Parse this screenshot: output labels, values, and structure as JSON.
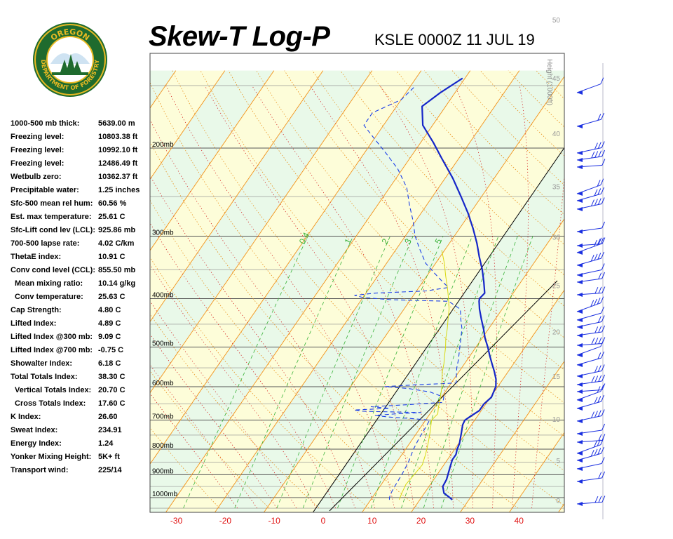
{
  "header": {
    "title": "Skew-T Log-P",
    "station_time": "KSLE 0000Z 11 JUL 19"
  },
  "logo": {
    "top_text": "OREGON",
    "ring_text": "DEPARTMENT OF FORESTRY",
    "ring_color": "#1f6b2e",
    "accent_color": "#e8b923"
  },
  "indices": [
    {
      "label": "1000-500 mb thick:",
      "value": "5639.00 m"
    },
    {
      "label": "Freezing level:",
      "value": "10803.38 ft"
    },
    {
      "label": "Freezing level:",
      "value": "10992.10 ft"
    },
    {
      "label": "Freezing level:",
      "value": "12486.49 ft"
    },
    {
      "label": "Wetbulb zero:",
      "value": "10362.37 ft"
    },
    {
      "label": "Precipitable water:",
      "value": "1.25 inches"
    },
    {
      "label": "Sfc-500 mean rel hum:",
      "value": "60.56 %"
    },
    {
      "label": "Est. max temperature:",
      "value": "25.61 C"
    },
    {
      "label": "Sfc-Lift cond lev (LCL):",
      "value": "925.86 mb"
    },
    {
      "label": "700-500 lapse rate:",
      "value": "4.02 C/km"
    },
    {
      "label": "ThetaE index:",
      "value": "10.91 C"
    },
    {
      "label": "Conv cond level (CCL):",
      "value": "855.50 mb"
    },
    {
      "label": "Mean mixing ratio:",
      "value": "10.14 g/kg",
      "indent": true
    },
    {
      "label": "Conv temperature:",
      "value": "25.63 C",
      "indent": true
    },
    {
      "label": "Cap Strength:",
      "value": "4.80 C"
    },
    {
      "label": "Lifted Index:",
      "value": "4.89 C"
    },
    {
      "label": "Lifted Index @300 mb:",
      "value": "9.09 C"
    },
    {
      "label": "Lifted Index @700 mb:",
      "value": "-0.75 C"
    },
    {
      "label": "Showalter Index:",
      "value": "6.18 C"
    },
    {
      "label": "Total Totals Index:",
      "value": "38.30 C"
    },
    {
      "label": "Vertical Totals Index:",
      "value": "20.70 C",
      "indent": true
    },
    {
      "label": "Cross Totals Index:",
      "value": "17.60 C",
      "indent": true
    },
    {
      "label": "K Index:",
      "value": "26.60"
    },
    {
      "label": "Sweat Index:",
      "value": "234.91"
    },
    {
      "label": "Energy Index:",
      "value": "1.24"
    },
    {
      "label": "Yonker Mixing Height:",
      "value": "5K+ ft"
    },
    {
      "label": "Transport wind:",
      "value": "225/14"
    }
  ],
  "chart_data": {
    "type": "line",
    "skew": "skew-T log-P thermodynamic diagram",
    "xlabel": "",
    "ylabel": "",
    "x_ticks": [
      "-30",
      "-20",
      "-10",
      "0",
      "10",
      "20",
      "30",
      "40"
    ],
    "xlim": [
      -36,
      48
    ],
    "ylim_mb": [
      1050,
      150
    ],
    "pressure_labels": [
      "200mb",
      "300mb",
      "400mb",
      "500mb",
      "600mb",
      "700mb",
      "800mb",
      "900mb",
      "1000mb"
    ],
    "pressure_levels": [
      200,
      300,
      400,
      500,
      600,
      700,
      800,
      900,
      1000
    ],
    "height_axis_label": "Height (1000ft)",
    "height_ticks": [
      "50",
      "45",
      "40",
      "35",
      "30",
      "25",
      "20",
      "15",
      "10",
      "5",
      "0"
    ],
    "mixing_ratio_labels": [
      "0.4",
      "1",
      "2",
      "3",
      "5"
    ],
    "background_colors": {
      "green": "#e9f9e9",
      "yellow": "#fdfdd9"
    },
    "series": [
      {
        "role": "temperature",
        "color": "#1526c8",
        "points": [
          [
            1010,
            26.6
          ],
          [
            1000,
            25.8
          ],
          [
            980,
            24.0
          ],
          [
            950,
            22.8
          ],
          [
            920,
            22.6
          ],
          [
            900,
            22.2
          ],
          [
            870,
            21.6
          ],
          [
            840,
            21.0
          ],
          [
            820,
            21.0
          ],
          [
            800,
            20.5
          ],
          [
            780,
            20.2
          ],
          [
            760,
            19.6
          ],
          [
            740,
            19.0
          ],
          [
            715,
            18.2
          ],
          [
            700,
            18.0
          ],
          [
            690,
            18.5
          ],
          [
            670,
            19.6
          ],
          [
            650,
            19.6
          ],
          [
            630,
            20.2
          ],
          [
            610,
            19.8
          ],
          [
            600,
            19.6
          ],
          [
            580,
            18.6
          ],
          [
            560,
            17.2
          ],
          [
            540,
            15.6
          ],
          [
            520,
            14.0
          ],
          [
            500,
            12.4
          ],
          [
            480,
            10.6
          ],
          [
            460,
            9.0
          ],
          [
            440,
            7.2
          ],
          [
            420,
            5.4
          ],
          [
            405,
            4.2
          ],
          [
            400,
            3.9
          ],
          [
            390,
            4.2
          ],
          [
            370,
            2.4
          ],
          [
            350,
            0.4
          ],
          [
            330,
            -2.0
          ],
          [
            310,
            -4.4
          ],
          [
            290,
            -7.2
          ],
          [
            270,
            -10.4
          ],
          [
            250,
            -14.2
          ],
          [
            230,
            -18.4
          ],
          [
            210,
            -23.4
          ],
          [
            195,
            -27.4
          ],
          [
            180,
            -32.0
          ],
          [
            165,
            -34.8
          ],
          [
            155,
            -33.0
          ],
          [
            145,
            -30.5
          ]
        ]
      },
      {
        "role": "dewpoint",
        "color": "#1a3ee8",
        "points": [
          [
            1010,
            13.8
          ],
          [
            1000,
            13.5
          ],
          [
            980,
            13.2
          ],
          [
            950,
            13.0
          ],
          [
            900,
            12.8
          ],
          [
            850,
            12.4
          ],
          [
            800,
            11.6
          ],
          [
            760,
            11.2
          ],
          [
            720,
            11.0
          ],
          [
            700,
            10.8
          ],
          [
            695,
            7.0
          ],
          [
            690,
            2.0
          ],
          [
            685,
            -1.0
          ],
          [
            680,
            3.0
          ],
          [
            676,
            8.0
          ],
          [
            672,
            -4.0
          ],
          [
            668,
            -6.0
          ],
          [
            663,
            1.0
          ],
          [
            658,
            -3.0
          ],
          [
            652,
            4.0
          ],
          [
            645,
            11.0
          ],
          [
            630,
            10.5
          ],
          [
            615,
            7.0
          ],
          [
            605,
            2.0
          ],
          [
            600,
            -3.0
          ],
          [
            595,
            3.0
          ],
          [
            590,
            11.0
          ],
          [
            570,
            10.0
          ],
          [
            550,
            9.0
          ],
          [
            530,
            8.2
          ],
          [
            510,
            7.2
          ],
          [
            490,
            6.2
          ],
          [
            460,
            4.6
          ],
          [
            440,
            3.0
          ],
          [
            420,
            1.5
          ],
          [
            405,
            -2.0
          ],
          [
            402,
            -14.0
          ],
          [
            398,
            -20.0
          ],
          [
            394,
            -22.0
          ],
          [
            390,
            -18.0
          ],
          [
            386,
            -8.0
          ],
          [
            380,
            -4.0
          ],
          [
            370,
            -6.0
          ],
          [
            355,
            -9.0
          ],
          [
            340,
            -12.0
          ],
          [
            320,
            -15.0
          ],
          [
            300,
            -18.0
          ],
          [
            280,
            -20.5
          ],
          [
            260,
            -23.5
          ],
          [
            240,
            -26.5
          ],
          [
            220,
            -31.0
          ],
          [
            205,
            -35.5
          ],
          [
            190,
            -40.5
          ],
          [
            180,
            -44.0
          ],
          [
            170,
            -44.0
          ],
          [
            160,
            -40.0
          ],
          [
            150,
            -39.0
          ]
        ]
      },
      {
        "role": "parcel",
        "color": "#d8d810",
        "points": [
          [
            1010,
            15.8
          ],
          [
            980,
            15.4
          ],
          [
            940,
            15.0
          ],
          [
            900,
            15.3
          ],
          [
            860,
            15.6
          ],
          [
            820,
            14.8
          ],
          [
            780,
            13.8
          ],
          [
            740,
            12.6
          ],
          [
            700,
            11.2
          ],
          [
            680,
            11.6
          ],
          [
            660,
            10.8
          ],
          [
            640,
            10.2
          ],
          [
            620,
            9.4
          ],
          [
            600,
            8.6
          ],
          [
            580,
            7.6
          ],
          [
            560,
            6.6
          ],
          [
            540,
            5.8
          ],
          [
            520,
            4.8
          ],
          [
            500,
            3.8
          ],
          [
            480,
            2.6
          ],
          [
            460,
            1.6
          ],
          [
            440,
            0.4
          ],
          [
            420,
            -0.8
          ],
          [
            400,
            -2.4
          ],
          [
            380,
            -4.2
          ],
          [
            360,
            -6.2
          ],
          [
            340,
            -8.2
          ],
          [
            320,
            -10.6
          ]
        ]
      }
    ]
  }
}
